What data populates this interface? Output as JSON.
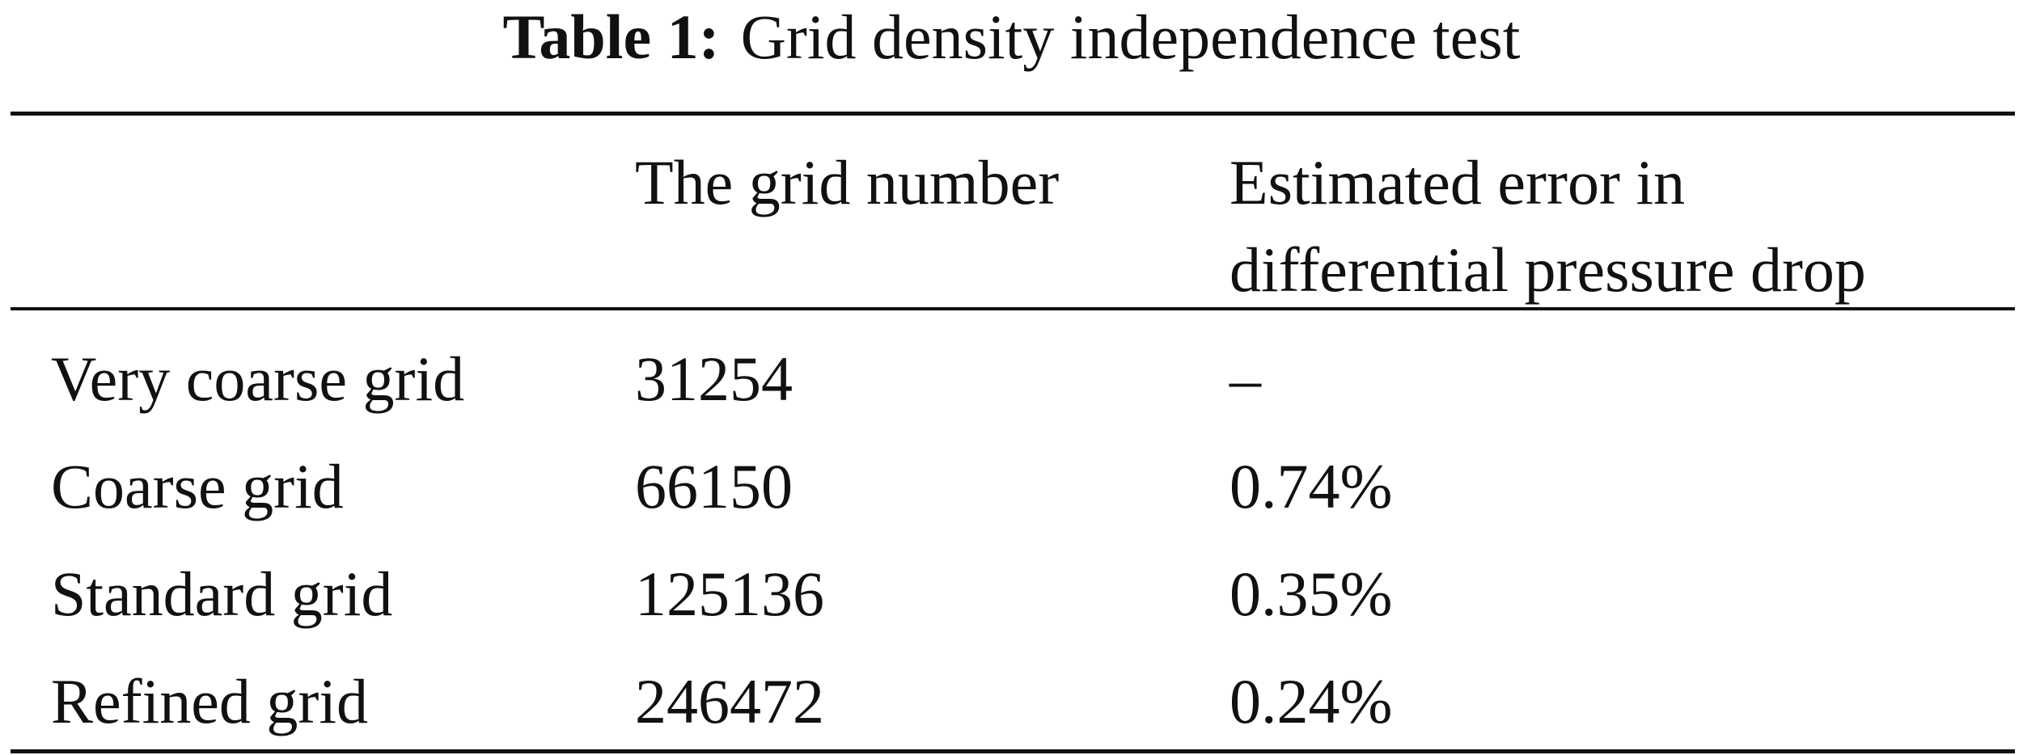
{
  "caption": {
    "label": "Table 1:",
    "text": "Grid density independence test"
  },
  "table": {
    "headers": {
      "col0": "",
      "col1": "The grid number",
      "col2_line1": "Estimated error in",
      "col2_line2": "differential pressure drop"
    },
    "rows": [
      {
        "name": "Very coarse grid",
        "grid_number": "31254",
        "error": "–"
      },
      {
        "name": "Coarse grid",
        "grid_number": "66150",
        "error": "0.74%"
      },
      {
        "name": "Standard grid",
        "grid_number": "125136",
        "error": "0.35%"
      },
      {
        "name": "Refined grid",
        "grid_number": "246472",
        "error": "0.24%"
      }
    ]
  }
}
